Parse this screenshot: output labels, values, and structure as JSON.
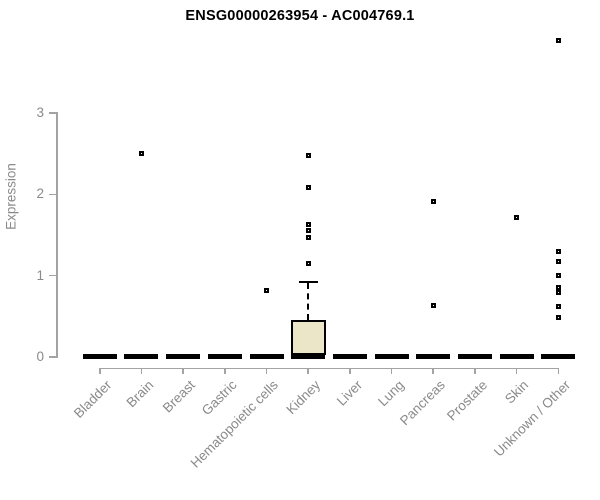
{
  "chart_data": {
    "type": "boxplot",
    "title": "ENSG00000263954 - AC004769.1",
    "ylabel": "Expression",
    "xlabel": "",
    "ylim": [
      0,
      3
    ],
    "yticks": [
      0,
      1,
      2,
      3
    ],
    "grid": false,
    "legend": "none",
    "colors": {
      "box_fill": "#ece6c9",
      "box_stroke": "#000000",
      "data_color": "#000000",
      "axis_line_color": "#a3a3a3",
      "axis_text_color": "#8a8a8a",
      "title_color": "#000000",
      "background": "#ffffff"
    },
    "categories": [
      "Bladder",
      "Brain",
      "Breast",
      "Gastric",
      "Hematopoietic cells",
      "Kidney",
      "Liver",
      "Lung",
      "Pancreas",
      "Prostate",
      "Skin",
      "Unknown / Other"
    ],
    "series": [
      {
        "name": "Bladder",
        "q1": 0,
        "median": 0,
        "q3": 0,
        "whisker_low": 0,
        "whisker_high": 0,
        "outliers": []
      },
      {
        "name": "Brain",
        "q1": 0,
        "median": 0,
        "q3": 0,
        "whisker_low": 0,
        "whisker_high": 0,
        "outliers": [
          2.5
        ]
      },
      {
        "name": "Breast",
        "q1": 0,
        "median": 0,
        "q3": 0,
        "whisker_low": 0,
        "whisker_high": 0,
        "outliers": []
      },
      {
        "name": "Gastric",
        "q1": 0,
        "median": 0,
        "q3": 0,
        "whisker_low": 0,
        "whisker_high": 0,
        "outliers": []
      },
      {
        "name": "Hematopoietic cells",
        "q1": 0,
        "median": 0,
        "q3": 0,
        "whisker_low": 0,
        "whisker_high": 0,
        "outliers": [
          0.82
        ]
      },
      {
        "name": "Kidney",
        "q1": 0,
        "median": 0,
        "q3": 0.45,
        "whisker_low": 0,
        "whisker_high": 0.92,
        "outliers": [
          1.15,
          1.47,
          1.56,
          1.63,
          2.08,
          2.48
        ]
      },
      {
        "name": "Liver",
        "q1": 0,
        "median": 0,
        "q3": 0,
        "whisker_low": 0,
        "whisker_high": 0,
        "outliers": []
      },
      {
        "name": "Lung",
        "q1": 0,
        "median": 0,
        "q3": 0,
        "whisker_low": 0,
        "whisker_high": 0,
        "outliers": []
      },
      {
        "name": "Pancreas",
        "q1": 0,
        "median": 0,
        "q3": 0,
        "whisker_low": 0,
        "whisker_high": 0,
        "outliers": [
          0.63,
          1.91
        ]
      },
      {
        "name": "Prostate",
        "q1": 0,
        "median": 0,
        "q3": 0,
        "whisker_low": 0,
        "whisker_high": 0,
        "outliers": []
      },
      {
        "name": "Skin",
        "q1": 0,
        "median": 0,
        "q3": 0,
        "whisker_low": 0,
        "whisker_high": 0,
        "outliers": [
          1.71
        ]
      },
      {
        "name": "Unknown / Other",
        "q1": 0,
        "median": 0,
        "q3": 0,
        "whisker_low": 0,
        "whisker_high": 0,
        "outliers": [
          0.49,
          0.62,
          0.79,
          0.85,
          1.0,
          1.17,
          1.3,
          3.89
        ]
      }
    ]
  }
}
